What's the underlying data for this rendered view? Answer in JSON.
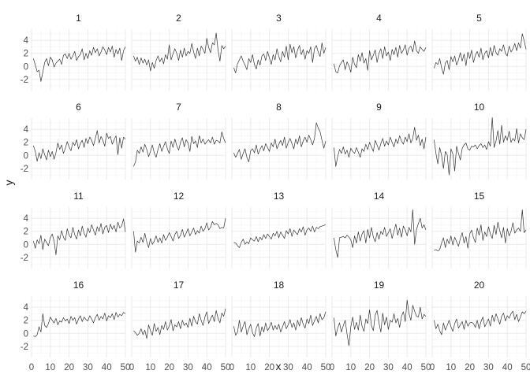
{
  "chart_data": {
    "type": "line",
    "layout": "facet_wrap 4 rows x 5 columns",
    "xlabel": "x",
    "ylabel": "y",
    "xlim": [
      0,
      50
    ],
    "ylim": [
      -3.7,
      5.7
    ],
    "x_ticks": [
      0,
      10,
      20,
      30,
      40,
      50
    ],
    "y_ticks": [
      -2,
      0,
      2,
      4
    ],
    "grid": true,
    "line_color": "#333333",
    "x": [
      1,
      2,
      3,
      4,
      5,
      6,
      7,
      8,
      9,
      10,
      11,
      12,
      13,
      14,
      15,
      16,
      17,
      18,
      19,
      20,
      21,
      22,
      23,
      24,
      25,
      26,
      27,
      28,
      29,
      30,
      31,
      32,
      33,
      34,
      35,
      36,
      37,
      38,
      39,
      40,
      41,
      42,
      43,
      44,
      45,
      46,
      47,
      48,
      49,
      50
    ],
    "series": [
      {
        "name": "1",
        "values": [
          1.2,
          0.2,
          -0.8,
          -0.6,
          -2.3,
          -0.9,
          0.6,
          1.2,
          0.1,
          1.4,
          1.0,
          -0.1,
          0.5,
          0.8,
          1.1,
          0.3,
          1.7,
          1.9,
          1.2,
          2.0,
          1.1,
          1.6,
          2.3,
          0.9,
          1.5,
          1.8,
          2.7,
          1.0,
          2.0,
          1.2,
          2.4,
          1.7,
          2.9,
          2.1,
          2.7,
          1.6,
          2.2,
          3.0,
          2.5,
          1.8,
          2.9,
          2.2,
          3.1,
          1.4,
          2.6,
          1.9,
          2.8,
          0.9,
          2.4,
          3.0
        ]
      },
      {
        "name": "2",
        "values": [
          1.6,
          0.8,
          1.4,
          0.3,
          1.3,
          0.5,
          1.1,
          0.2,
          1.0,
          -0.7,
          0.6,
          -0.3,
          0.9,
          1.6,
          0.7,
          1.3,
          0.4,
          1.8,
          1.1,
          3.3,
          1.0,
          1.9,
          2.7,
          2.0,
          0.9,
          2.5,
          1.4,
          2.8,
          1.6,
          2.3,
          2.0,
          3.5,
          2.2,
          1.2,
          2.8,
          1.6,
          3.1,
          2.6,
          2.0,
          4.3,
          2.9,
          2.1,
          3.6,
          3.3,
          5.1,
          2.5,
          0.8,
          3.2,
          2.7,
          3.1
        ]
      },
      {
        "name": "3",
        "values": [
          -0.2,
          -1.0,
          0.4,
          1.0,
          1.6,
          0.8,
          0.2,
          -0.5,
          1.2,
          0.6,
          1.8,
          0.3,
          -0.4,
          1.0,
          0.2,
          1.6,
          1.9,
          0.9,
          2.3,
          1.3,
          0.3,
          1.8,
          1.0,
          2.7,
          1.5,
          0.7,
          2.3,
          1.4,
          3.1,
          1.0,
          3.4,
          2.1,
          3.0,
          1.3,
          2.5,
          3.2,
          1.8,
          2.6,
          1.1,
          2.4,
          2.0,
          3.0,
          0.6,
          2.7,
          3.2,
          2.2,
          1.5,
          3.6,
          2.0,
          2.9
        ]
      },
      {
        "name": "4",
        "values": [
          0.4,
          -0.8,
          -1.0,
          0.1,
          0.6,
          1.0,
          -0.5,
          0.7,
          0.1,
          -0.9,
          1.4,
          0.3,
          -0.2,
          1.8,
          0.8,
          2.1,
          0.5,
          1.2,
          -0.6,
          2.4,
          1.0,
          1.7,
          2.5,
          0.6,
          2.0,
          2.7,
          1.2,
          3.0,
          1.6,
          2.2,
          0.9,
          2.6,
          1.8,
          2.9,
          1.4,
          3.2,
          2.0,
          2.5,
          3.3,
          1.7,
          2.8,
          3.1,
          2.2,
          3.9,
          2.4,
          2.0,
          3.0,
          2.6,
          2.3,
          2.9
        ]
      },
      {
        "name": "5",
        "values": [
          -0.3,
          0.6,
          0.3,
          1.2,
          -0.2,
          -1.2,
          0.5,
          0.9,
          -0.5,
          1.5,
          0.7,
          1.6,
          0.2,
          1.0,
          2.1,
          0.8,
          1.9,
          0.1,
          2.2,
          1.2,
          2.5,
          0.6,
          1.7,
          2.3,
          1.4,
          2.8,
          1.0,
          2.0,
          2.4,
          1.3,
          2.9,
          1.6,
          3.2,
          2.1,
          1.7,
          2.7,
          2.3,
          3.3,
          2.0,
          1.6,
          3.1,
          2.2,
          2.7,
          3.5,
          2.4,
          3.6,
          2.8,
          5.0,
          3.9,
          2.6
        ]
      },
      {
        "name": "6",
        "values": [
          1.5,
          0.6,
          -0.9,
          0.4,
          -0.5,
          1.0,
          0.1,
          -0.7,
          0.8,
          -0.2,
          0.6,
          -0.6,
          0.4,
          1.9,
          0.9,
          1.6,
          0.3,
          1.1,
          2.1,
          1.3,
          0.7,
          2.0,
          1.5,
          2.4,
          1.0,
          1.8,
          2.3,
          1.2,
          2.6,
          1.8,
          2.8,
          2.3,
          1.5,
          2.6,
          3.8,
          1.9,
          2.9,
          2.3,
          1.4,
          3.4,
          2.6,
          2.9,
          1.7,
          2.4,
          3.0,
          0.1,
          2.7,
          1.1,
          2.8,
          2.5
        ]
      },
      {
        "name": "7",
        "values": [
          -1.7,
          -1.0,
          0.8,
          0.3,
          1.3,
          0.5,
          1.7,
          0.9,
          -0.2,
          0.6,
          1.6,
          0.4,
          -0.3,
          0.9,
          1.8,
          0.6,
          1.4,
          2.1,
          1.0,
          0.3,
          2.2,
          1.2,
          2.5,
          1.5,
          0.8,
          2.0,
          2.7,
          1.3,
          2.4,
          1.9,
          0.6,
          2.9,
          1.8,
          2.2,
          1.2,
          3.0,
          1.9,
          2.5,
          1.7,
          2.1,
          2.4,
          1.9,
          2.8,
          1.7,
          2.3,
          2.2,
          1.9,
          3.6,
          2.6,
          1.9
        ]
      },
      {
        "name": "8",
        "values": [
          0.4,
          -0.3,
          0.3,
          0.9,
          -0.6,
          0.3,
          1.0,
          -0.3,
          -1.0,
          0.7,
          1.0,
          0.4,
          1.6,
          0.2,
          0.9,
          1.5,
          0.7,
          1.8,
          1.2,
          0.6,
          1.9,
          1.3,
          2.5,
          1.0,
          1.7,
          2.3,
          1.5,
          2.8,
          1.1,
          2.0,
          2.6,
          1.8,
          1.0,
          2.5,
          1.7,
          3.0,
          1.3,
          2.2,
          2.8,
          2.0,
          3.1,
          2.4,
          1.6,
          2.6,
          5.0,
          4.2,
          3.6,
          2.3,
          1.1,
          2.2
        ]
      },
      {
        "name": "9",
        "values": [
          1.2,
          -1.7,
          -0.2,
          0.9,
          0.3,
          1.3,
          0.2,
          0.8,
          -0.3,
          1.1,
          0.6,
          0.3,
          1.2,
          0.5,
          -0.3,
          1.0,
          0.6,
          1.7,
          0.9,
          2.0,
          1.3,
          0.6,
          2.3,
          1.6,
          0.8,
          1.8,
          2.6,
          1.4,
          2.2,
          1.6,
          2.8,
          2.0,
          1.3,
          2.5,
          1.8,
          3.0,
          2.2,
          1.7,
          2.8,
          2.1,
          3.3,
          1.9,
          2.6,
          4.3,
          2.3,
          3.1,
          1.5,
          2.5,
          1.0,
          2.8
        ]
      },
      {
        "name": "10",
        "values": [
          2.4,
          0.3,
          -1.3,
          1.2,
          0.0,
          -2.0,
          0.6,
          0.1,
          -3.0,
          1.0,
          0.2,
          -2.4,
          1.4,
          0.3,
          -0.7,
          1.1,
          1.6,
          1.9,
          1.0,
          0.8,
          1.4,
          1.3,
          1.6,
          1.0,
          1.5,
          1.8,
          1.2,
          1.6,
          0.9,
          2.1,
          1.4,
          5.8,
          1.2,
          2.2,
          3.8,
          1.7,
          4.6,
          2.0,
          3.0,
          2.3,
          3.7,
          2.0,
          2.6,
          2.2,
          4.1,
          1.9,
          3.3,
          2.7,
          2.4,
          4.0
        ]
      },
      {
        "name": "11",
        "values": [
          0.5,
          -0.6,
          0.7,
          0.1,
          1.4,
          -0.8,
          0.8,
          0.3,
          -0.2,
          1.0,
          1.6,
          0.5,
          -1.6,
          1.3,
          0.7,
          2.1,
          1.1,
          0.6,
          2.4,
          1.4,
          1.0,
          2.6,
          1.5,
          0.8,
          2.2,
          1.3,
          2.8,
          1.7,
          1.1,
          2.5,
          1.8,
          3.0,
          2.2,
          1.4,
          2.7,
          2.0,
          3.2,
          1.6,
          2.6,
          2.9,
          1.8,
          3.1,
          2.3,
          2.9,
          1.9,
          3.4,
          2.5,
          2.8,
          3.9,
          1.9
        ]
      },
      {
        "name": "12",
        "values": [
          2.0,
          -1.2,
          0.5,
          0.2,
          1.1,
          0.3,
          1.7,
          0.4,
          -0.5,
          0.9,
          0.0,
          0.5,
          1.3,
          0.3,
          1.0,
          0.2,
          1.5,
          0.6,
          1.1,
          1.8,
          1.2,
          0.5,
          1.5,
          2.0,
          0.9,
          1.4,
          2.3,
          1.1,
          1.7,
          2.4,
          1.3,
          1.9,
          2.5,
          1.5,
          2.1,
          1.7,
          2.8,
          2.0,
          2.4,
          3.3,
          2.2,
          2.6,
          3.5,
          3.0,
          3.2,
          3.0,
          2.4,
          2.6,
          2.5,
          4.0
        ]
      },
      {
        "name": "13",
        "values": [
          0.3,
          0.2,
          -0.2,
          -0.5,
          0.3,
          0.8,
          0.0,
          0.4,
          0.1,
          1.0,
          0.7,
          0.5,
          1.2,
          0.4,
          1.1,
          0.7,
          1.5,
          0.9,
          1.6,
          1.2,
          0.8,
          1.7,
          1.3,
          2.0,
          1.0,
          1.9,
          1.4,
          0.9,
          2.1,
          1.6,
          2.4,
          1.2,
          2.2,
          1.8,
          1.5,
          2.4,
          1.9,
          2.7,
          1.4,
          2.2,
          2.5,
          2.0,
          2.8,
          1.9,
          2.6,
          2.4,
          2.7,
          2.8,
          2.9,
          3.0
        ]
      },
      {
        "name": "14",
        "values": [
          1.0,
          -0.8,
          -2.0,
          1.0,
          1.1,
          1.2,
          1.0,
          1.4,
          1.1,
          0.7,
          -0.5,
          1.3,
          0.2,
          1.9,
          0.5,
          1.6,
          2.1,
          0.2,
          2.3,
          1.0,
          2.6,
          1.1,
          0.4,
          1.8,
          0.8,
          2.0,
          1.5,
          2.6,
          1.2,
          1.8,
          2.4,
          0.9,
          2.0,
          3.1,
          1.4,
          2.5,
          1.1,
          2.8,
          2.2,
          1.3,
          2.6,
          1.9,
          5.3,
          0.0,
          2.3,
          3.2,
          4.0,
          2.5,
          3.0,
          2.2
        ]
      },
      {
        "name": "15",
        "values": [
          -0.9,
          -0.8,
          -1.0,
          -0.8,
          0.2,
          1.0,
          -0.5,
          0.8,
          0.1,
          1.3,
          -0.1,
          1.1,
          0.4,
          -0.3,
          0.9,
          1.8,
          0.2,
          1.2,
          -0.6,
          1.6,
          2.2,
          1.0,
          0.3,
          2.5,
          1.4,
          3.0,
          0.6,
          1.9,
          1.2,
          2.7,
          1.6,
          0.9,
          2.9,
          1.5,
          3.4,
          2.1,
          1.0,
          2.6,
          0.2,
          2.4,
          1.3,
          2.0,
          3.3,
          1.7,
          2.2,
          2.5,
          2.0,
          5.3,
          1.8,
          2.2
        ]
      },
      {
        "name": "16",
        "values": [
          -0.4,
          -0.5,
          -0.2,
          1.0,
          0.2,
          3.0,
          1.2,
          0.9,
          1.5,
          2.5,
          2.0,
          1.6,
          2.3,
          1.3,
          1.9,
          1.7,
          2.4,
          1.9,
          2.2,
          1.5,
          2.6,
          2.0,
          2.4,
          1.4,
          2.2,
          2.7,
          1.8,
          2.5,
          2.1,
          1.9,
          2.7,
          2.2,
          1.6,
          2.4,
          2.9,
          2.0,
          2.6,
          2.2,
          3.1,
          1.9,
          2.7,
          2.4,
          3.0,
          2.1,
          3.2,
          2.5,
          2.9,
          2.7,
          3.2,
          3.0
        ]
      },
      {
        "name": "17",
        "values": [
          0.4,
          0.1,
          -0.3,
          0.0,
          0.7,
          -0.2,
          0.5,
          -0.8,
          1.3,
          0.4,
          -0.3,
          1.5,
          0.3,
          0.9,
          -0.2,
          1.2,
          0.6,
          1.8,
          0.5,
          1.1,
          2.1,
          0.4,
          1.3,
          1.0,
          1.8,
          0.7,
          2.0,
          1.2,
          1.6,
          0.9,
          2.3,
          1.1,
          2.6,
          1.8,
          1.4,
          3.0,
          2.0,
          1.2,
          2.5,
          3.3,
          1.5,
          2.2,
          2.8,
          1.8,
          3.5,
          2.3,
          1.6,
          3.1,
          2.6,
          3.8
        ]
      },
      {
        "name": "18",
        "values": [
          1.1,
          -0.3,
          0.2,
          2.0,
          0.2,
          1.1,
          1.8,
          -0.2,
          0.7,
          1.4,
          0.1,
          -0.5,
          0.8,
          1.5,
          -0.4,
          1.0,
          0.2,
          1.6,
          0.4,
          0.9,
          1.7,
          0.5,
          1.2,
          0.6,
          1.4,
          0.2,
          1.0,
          1.8,
          0.7,
          1.3,
          2.1,
          0.9,
          1.6,
          0.5,
          2.0,
          1.1,
          2.4,
          1.4,
          0.8,
          2.2,
          1.5,
          2.8,
          1.2,
          1.9,
          2.6,
          1.6,
          3.0,
          2.1,
          2.4,
          3.3
        ]
      },
      {
        "name": "19",
        "values": [
          2.4,
          -0.4,
          0.8,
          1.6,
          0.2,
          1.2,
          2.0,
          -0.1,
          -1.9,
          1.0,
          2.5,
          0.6,
          1.7,
          0.5,
          2.8,
          1.1,
          0.3,
          2.2,
          1.5,
          3.6,
          1.2,
          0.4,
          2.8,
          3.5,
          1.6,
          0.2,
          3.1,
          1.3,
          2.5,
          0.6,
          2.0,
          1.7,
          3.0,
          1.6,
          2.3,
          0.9,
          2.6,
          3.3,
          1.8,
          5.1,
          3.0,
          2.0,
          4.3,
          3.4,
          2.6,
          2.5,
          4.0,
          2.2,
          2.9,
          2.6
        ]
      },
      {
        "name": "20",
        "values": [
          2.0,
          0.7,
          1.4,
          0.4,
          -0.2,
          1.6,
          0.5,
          1.2,
          2.0,
          1.0,
          0.3,
          1.5,
          2.2,
          0.8,
          1.3,
          1.8,
          0.6,
          2.0,
          1.1,
          1.6,
          1.7,
          1.5,
          0.9,
          2.0,
          0.7,
          1.8,
          2.5,
          1.0,
          1.6,
          2.2,
          1.1,
          2.8,
          1.8,
          3.0,
          2.2,
          1.4,
          2.6,
          3.1,
          1.9,
          2.7,
          2.3,
          3.0,
          3.4,
          2.1,
          2.9,
          1.8,
          2.5,
          3.3,
          3.0,
          3.4
        ]
      }
    ]
  }
}
